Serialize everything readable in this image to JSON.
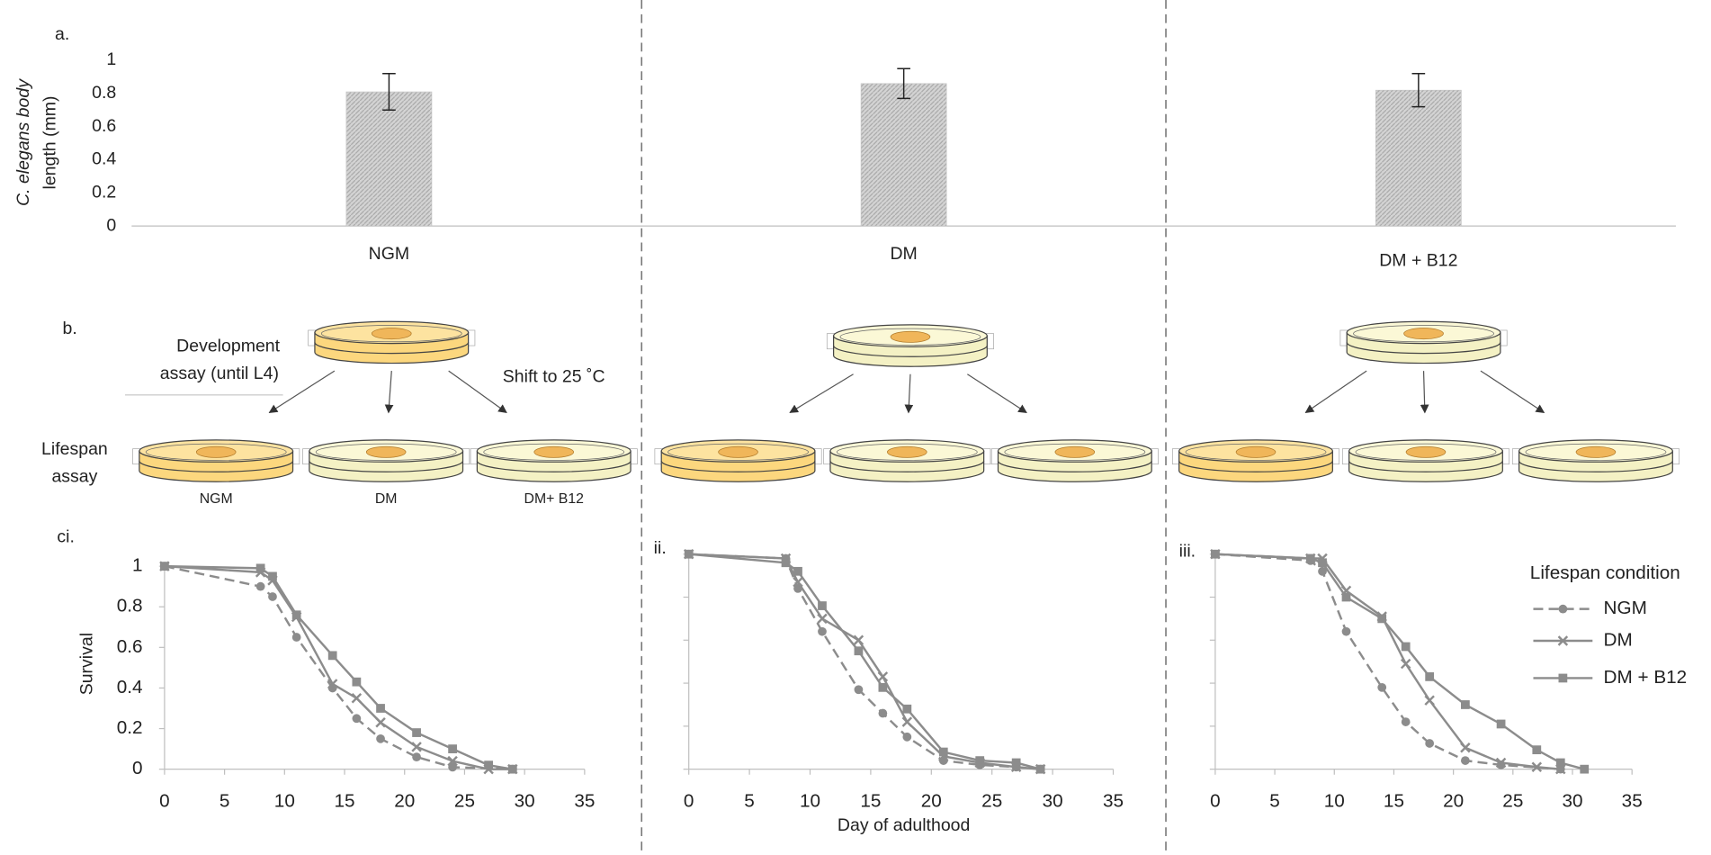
{
  "chart_data": [
    {
      "type": "bar",
      "panel_label": "a.",
      "ylabel": [
        "C. elegans body",
        "length (mm)"
      ],
      "categories": [
        "NGM",
        "DM",
        "DM + B12"
      ],
      "values": [
        0.81,
        0.86,
        0.82
      ],
      "errors": [
        0.11,
        0.09,
        0.1
      ],
      "color": "#c4c4c4",
      "ylim": [
        0,
        1
      ],
      "yticks": [
        0,
        0.2,
        0.4,
        0.6,
        0.8,
        1
      ]
    },
    {
      "type": "line",
      "panel_label": "ci.",
      "ylabel": "Survival",
      "xlim": [
        0,
        35
      ],
      "xticks": [
        0,
        5,
        10,
        15,
        20,
        25,
        30,
        35
      ],
      "ylim": [
        0,
        1
      ],
      "yticks": [
        0,
        0.2,
        0.4,
        0.6,
        0.8,
        1
      ],
      "ytick_labels": true,
      "series": [
        {
          "name": "NGM",
          "color": "#8c8c8c",
          "style": "dashed",
          "marker": "circle",
          "x": [
            0,
            8,
            9,
            11,
            14,
            16,
            18,
            21,
            24,
            29
          ],
          "values": [
            1,
            0.9,
            0.85,
            0.65,
            0.4,
            0.25,
            0.15,
            0.06,
            0.01,
            0
          ]
        },
        {
          "name": "DM",
          "color": "#8c8c8c",
          "style": "solid",
          "marker": "x",
          "x": [
            0,
            8,
            9,
            11,
            14,
            16,
            18,
            21,
            24,
            27,
            29
          ],
          "values": [
            1,
            0.97,
            0.93,
            0.75,
            0.42,
            0.35,
            0.23,
            0.11,
            0.04,
            0,
            0
          ]
        },
        {
          "name": "DM + B12",
          "color": "#8c8c8c",
          "style": "solid",
          "marker": "square",
          "x": [
            0,
            8,
            9,
            11,
            14,
            16,
            18,
            21,
            24,
            27,
            29
          ],
          "values": [
            1,
            0.99,
            0.95,
            0.76,
            0.56,
            0.43,
            0.3,
            0.18,
            0.1,
            0.02,
            0
          ]
        }
      ]
    },
    {
      "type": "line",
      "panel_label": "ii.",
      "xlabel": "Day of adulthood",
      "xlim": [
        0,
        35
      ],
      "xticks": [
        0,
        5,
        10,
        15,
        20,
        25,
        30,
        35
      ],
      "ylim": [
        0,
        1
      ],
      "yticks": [
        0,
        0.2,
        0.4,
        0.6,
        0.8,
        1
      ],
      "ytick_labels": false,
      "series": [
        {
          "name": "NGM",
          "color": "#8c8c8c",
          "style": "dashed",
          "marker": "circle",
          "x": [
            0,
            8,
            9,
            11,
            14,
            16,
            18,
            21,
            24,
            27,
            29
          ],
          "values": [
            1,
            0.98,
            0.84,
            0.64,
            0.37,
            0.26,
            0.15,
            0.04,
            0.02,
            0.01,
            0
          ]
        },
        {
          "name": "DM",
          "color": "#8c8c8c",
          "style": "solid",
          "marker": "x",
          "x": [
            0,
            8,
            9,
            11,
            14,
            16,
            18,
            21,
            24,
            27,
            29
          ],
          "values": [
            1,
            0.98,
            0.87,
            0.7,
            0.6,
            0.43,
            0.22,
            0.06,
            0.03,
            0.01,
            0
          ]
        },
        {
          "name": "DM + B12",
          "color": "#8c8c8c",
          "style": "solid",
          "marker": "square",
          "x": [
            0,
            8,
            9,
            11,
            14,
            16,
            18,
            21,
            24,
            27,
            29
          ],
          "values": [
            1,
            0.96,
            0.92,
            0.76,
            0.55,
            0.38,
            0.28,
            0.08,
            0.04,
            0.03,
            0
          ]
        }
      ]
    },
    {
      "type": "line",
      "panel_label": "iii.",
      "legend_title": "Lifespan condition",
      "xlim": [
        0,
        35
      ],
      "xticks": [
        0,
        5,
        10,
        15,
        20,
        25,
        30,
        35
      ],
      "ylim": [
        0,
        1
      ],
      "yticks": [
        0,
        0.2,
        0.4,
        0.6,
        0.8,
        1
      ],
      "ytick_labels": false,
      "series": [
        {
          "name": "NGM",
          "color": "#8c8c8c",
          "style": "dashed",
          "marker": "circle",
          "x": [
            0,
            8,
            9,
            11,
            14,
            16,
            18,
            21,
            24,
            29
          ],
          "values": [
            1,
            0.97,
            0.92,
            0.64,
            0.38,
            0.22,
            0.12,
            0.04,
            0.02,
            0
          ]
        },
        {
          "name": "DM",
          "color": "#8c8c8c",
          "style": "solid",
          "marker": "x",
          "x": [
            0,
            8,
            9,
            11,
            14,
            16,
            18,
            21,
            24,
            27,
            29
          ],
          "values": [
            1,
            0.98,
            0.98,
            0.83,
            0.71,
            0.49,
            0.32,
            0.1,
            0.03,
            0.01,
            0
          ]
        },
        {
          "name": "DM + B12",
          "color": "#8c8c8c",
          "style": "solid",
          "marker": "square",
          "x": [
            0,
            8,
            9,
            11,
            14,
            16,
            18,
            21,
            24,
            27,
            29,
            31
          ],
          "values": [
            1,
            0.98,
            0.96,
            0.8,
            0.7,
            0.57,
            0.43,
            0.3,
            0.21,
            0.09,
            0.03,
            0
          ]
        }
      ]
    }
  ],
  "diagram": {
    "panel_label": "b.",
    "development_label": [
      "Development",
      "assay (until L4)"
    ],
    "shift_label": "Shift to 25 ˚C",
    "lifespan_label": [
      "Lifespan",
      "assay"
    ],
    "dish_labels": [
      "NGM",
      "DM",
      "DM+ B12"
    ]
  }
}
